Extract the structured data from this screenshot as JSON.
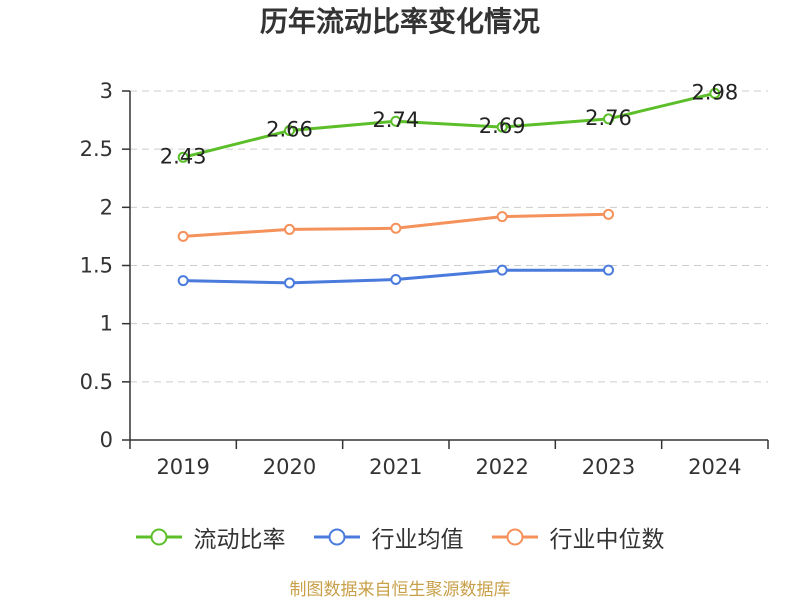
{
  "chart_data": {
    "type": "line",
    "title": "历年流动比率变化情况",
    "categories": [
      "2019",
      "2020",
      "2021",
      "2022",
      "2023",
      "2024"
    ],
    "series": [
      {
        "name": "流动比率",
        "values": [
          2.43,
          2.66,
          2.74,
          2.69,
          2.76,
          2.98
        ],
        "color": "#5cbf2a",
        "data_labels": true
      },
      {
        "name": "行业均值",
        "values": [
          1.37,
          1.35,
          1.38,
          1.46,
          1.46,
          null
        ],
        "color": "#4a7bdc",
        "data_labels": false
      },
      {
        "name": "行业中位数",
        "values": [
          1.75,
          1.81,
          1.82,
          1.92,
          1.94,
          null
        ],
        "color": "#f5915b",
        "data_labels": false
      }
    ],
    "ylim": [
      0,
      3
    ],
    "yticks": [
      0,
      0.5,
      1,
      1.5,
      2,
      2.5,
      3
    ],
    "grid": true,
    "grid_style": "dashed-horizontal",
    "legend": "bottom"
  },
  "source_note": "制图数据来自恒生聚源数据库",
  "colors": {
    "axis": "#333333",
    "grid": "#cccccc",
    "text": "#333333",
    "source_note": "#c9a04a"
  }
}
